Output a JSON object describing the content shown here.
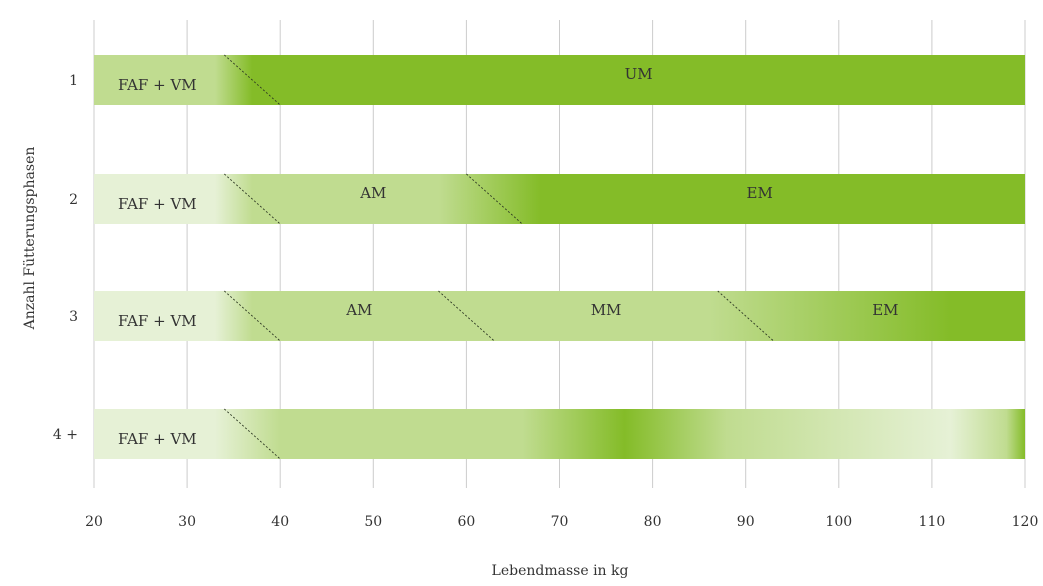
{
  "chart_data": {
    "type": "bar",
    "orientation": "horizontal",
    "xlabel": "Lebendmasse in kg",
    "ylabel": "Anzahl Fütterungsphasen",
    "xlim": [
      20,
      120
    ],
    "xticks": [
      20,
      30,
      40,
      50,
      60,
      70,
      80,
      90,
      100,
      110,
      120
    ],
    "xtick_labels": [
      "20",
      "30",
      "40",
      "50",
      "60",
      "70",
      "80",
      "90",
      "100",
      "110",
      "120"
    ],
    "grid": "vertical",
    "colors": {
      "light": "#e6f1d6",
      "mid": "#c0dc90",
      "dark": "#84bc28",
      "grid": "#cccccc",
      "text": "#333333"
    },
    "categories": [
      "1",
      "2",
      "3",
      "4 +"
    ],
    "rows": [
      {
        "phase": "1",
        "segments": [
          {
            "label": "FAF + VM",
            "start": 20,
            "end": 37
          },
          {
            "label": "UM",
            "start": 37,
            "end": 120
          }
        ],
        "transitions": [
          {
            "from": 34,
            "to": 40
          }
        ]
      },
      {
        "phase": "2",
        "segments": [
          {
            "label": "FAF + VM",
            "start": 20,
            "end": 37
          },
          {
            "label": "AM",
            "start": 37,
            "end": 63
          },
          {
            "label": "EM",
            "start": 63,
            "end": 120
          }
        ],
        "transitions": [
          {
            "from": 34,
            "to": 40
          },
          {
            "from": 60,
            "to": 66
          }
        ]
      },
      {
        "phase": "3",
        "segments": [
          {
            "label": "FAF + VM",
            "start": 20,
            "end": 37
          },
          {
            "label": "AM",
            "start": 37,
            "end": 60
          },
          {
            "label": "MM",
            "start": 60,
            "end": 90
          },
          {
            "label": "EM",
            "start": 90,
            "end": 120
          }
        ],
        "transitions": [
          {
            "from": 34,
            "to": 40
          },
          {
            "from": 57,
            "to": 63
          },
          {
            "from": 87,
            "to": 93
          }
        ]
      },
      {
        "phase": "4 +",
        "segments": [
          {
            "label": "FAF + VM",
            "start": 20,
            "end": 37
          },
          {
            "label": "",
            "start": 37,
            "end": 120
          }
        ],
        "transitions": [
          {
            "from": 34,
            "to": 40
          }
        ]
      }
    ]
  }
}
